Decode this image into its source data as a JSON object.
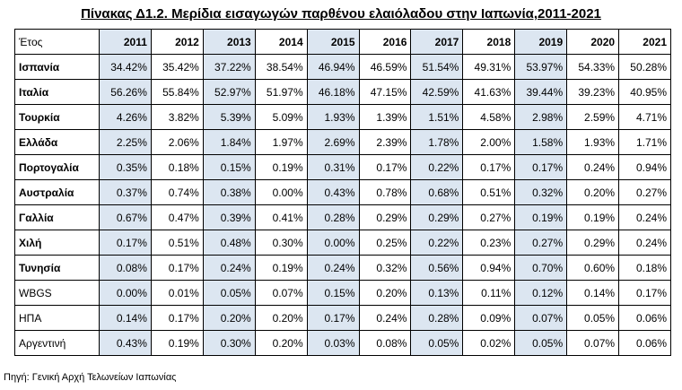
{
  "title": "Πίνακας Δ1.2. Μερίδια εισαγωγών παρθένου ελαιόλαδου στην Ιαπωνία,2011-2021",
  "table": {
    "header": [
      "Έτος",
      "2011",
      "2012",
      "2013",
      "2014",
      "2015",
      "2016",
      "2017",
      "2018",
      "2019",
      "2020",
      "2021"
    ],
    "rows": [
      [
        "Ισπανία",
        "34.42%",
        "35.42%",
        "37.22%",
        "38.54%",
        "46.94%",
        "46.59%",
        "51.54%",
        "49.31%",
        "53.97%",
        "54.33%",
        "50.28%"
      ],
      [
        "Ιταλία",
        "56.26%",
        "55.84%",
        "52.97%",
        "51.97%",
        "46.18%",
        "47.15%",
        "42.59%",
        "41.63%",
        "39.44%",
        "39.23%",
        "40.95%"
      ],
      [
        "Τουρκία",
        "4.26%",
        "3.82%",
        "5.39%",
        "5.09%",
        "1.93%",
        "1.39%",
        "1.51%",
        "4.58%",
        "2.98%",
        "2.59%",
        "4.71%"
      ],
      [
        "Ελλάδα",
        "2.25%",
        "2.06%",
        "1.84%",
        "1.97%",
        "2.69%",
        "2.39%",
        "1.78%",
        "2.00%",
        "1.58%",
        "1.93%",
        "1.71%"
      ],
      [
        "Πορτογαλία",
        "0.35%",
        "0.18%",
        "0.15%",
        "0.19%",
        "0.31%",
        "0.17%",
        "0.22%",
        "0.17%",
        "0.17%",
        "0.24%",
        "0.94%"
      ],
      [
        "Αυστραλία",
        "0.37%",
        "0.74%",
        "0.38%",
        "0.00%",
        "0.43%",
        "0.78%",
        "0.68%",
        "0.51%",
        "0.32%",
        "0.20%",
        "0.27%"
      ],
      [
        "Γαλλία",
        "0.67%",
        "0.47%",
        "0.39%",
        "0.41%",
        "0.28%",
        "0.29%",
        "0.29%",
        "0.27%",
        "0.19%",
        "0.19%",
        "0.24%"
      ],
      [
        "Χιλή",
        "0.17%",
        "0.51%",
        "0.48%",
        "0.30%",
        "0.00%",
        "0.25%",
        "0.22%",
        "0.23%",
        "0.27%",
        "0.29%",
        "0.24%"
      ],
      [
        "Τυνησία",
        "0.08%",
        "0.17%",
        "0.24%",
        "0.19%",
        "0.24%",
        "0.32%",
        "0.56%",
        "0.94%",
        "0.70%",
        "0.60%",
        "0.18%"
      ],
      [
        "WBGS",
        "0.00%",
        "0.01%",
        "0.05%",
        "0.07%",
        "0.15%",
        "0.20%",
        "0.13%",
        "0.11%",
        "0.12%",
        "0.14%",
        "0.17%"
      ],
      [
        "ΗΠΑ",
        "0.14%",
        "0.17%",
        "0.20%",
        "0.20%",
        "0.17%",
        "0.24%",
        "0.28%",
        "0.09%",
        "0.07%",
        "0.05%",
        "0.06%"
      ],
      [
        "Αργεντινή",
        "0.43%",
        "0.19%",
        "0.30%",
        "0.20%",
        "0.03%",
        "0.08%",
        "0.05%",
        "0.02%",
        "0.05%",
        "0.07%",
        "0.06%"
      ]
    ]
  },
  "source": "Πηγή: Γενική Αρχή Τελωνείων Ιαπωνίας"
}
